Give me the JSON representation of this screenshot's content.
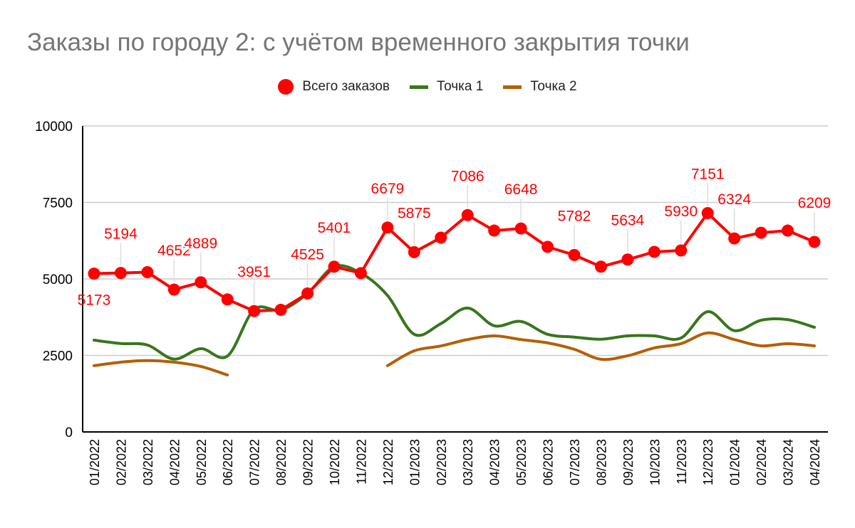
{
  "chart_data": {
    "type": "line",
    "title": "Заказы по городу 2: с учётом временного закрытия точки",
    "xlabel": "",
    "ylabel": "",
    "ylim": [
      0,
      10000
    ],
    "yticks": [
      "0",
      "2500",
      "5000",
      "7500",
      "10000"
    ],
    "grid": true,
    "legend_position": "top",
    "categories": [
      "01/2022",
      "02/2022",
      "03/2022",
      "04/2022",
      "05/2022",
      "06/2022",
      "07/2022",
      "08/2022",
      "09/2022",
      "10/2022",
      "11/2022",
      "12/2022",
      "01/2023",
      "02/2023",
      "03/2023",
      "04/2023",
      "05/2023",
      "06/2023",
      "07/2023",
      "08/2023",
      "09/2023",
      "10/2023",
      "11/2023",
      "12/2023",
      "01/2024",
      "02/2024",
      "03/2024",
      "04/2024"
    ],
    "series": [
      {
        "name": "Всего заказов",
        "color": "#ff0000",
        "style": "line-markers",
        "values": [
          5173,
          5194,
          5220,
          4652,
          4889,
          4330,
          3951,
          3990,
          4525,
          5401,
          5190,
          6679,
          5875,
          6350,
          7086,
          6580,
          6648,
          6050,
          5782,
          5400,
          5634,
          5885,
          5930,
          7151,
          6324,
          6510,
          6580,
          6209
        ],
        "labels": [
          "5173",
          "5194",
          null,
          "4652",
          "4889",
          null,
          "3951",
          null,
          "4525",
          "5401",
          null,
          "6679",
          "5875",
          null,
          "7086",
          null,
          "6648",
          null,
          "5782",
          null,
          "5634",
          null,
          "5930",
          "7151",
          "6324",
          null,
          null,
          "6209"
        ]
      },
      {
        "name": "Точка 1",
        "color": "#38761d",
        "style": "smooth",
        "values": [
          3000,
          2890,
          2840,
          2380,
          2720,
          2480,
          4000,
          3980,
          4525,
          5401,
          5190,
          4460,
          3190,
          3540,
          4050,
          3470,
          3610,
          3190,
          3100,
          3030,
          3140,
          3140,
          3070,
          3930,
          3310,
          3650,
          3670,
          3420
        ]
      },
      {
        "name": "Точка 2",
        "color": "#b45f06",
        "style": "smooth",
        "values": [
          2165,
          2280,
          2330,
          2280,
          2140,
          1860,
          null,
          null,
          null,
          null,
          null,
          2165,
          2650,
          2810,
          3020,
          3140,
          3020,
          2910,
          2700,
          2375,
          2490,
          2745,
          2885,
          3235,
          3020,
          2815,
          2885,
          2815
        ]
      }
    ]
  }
}
